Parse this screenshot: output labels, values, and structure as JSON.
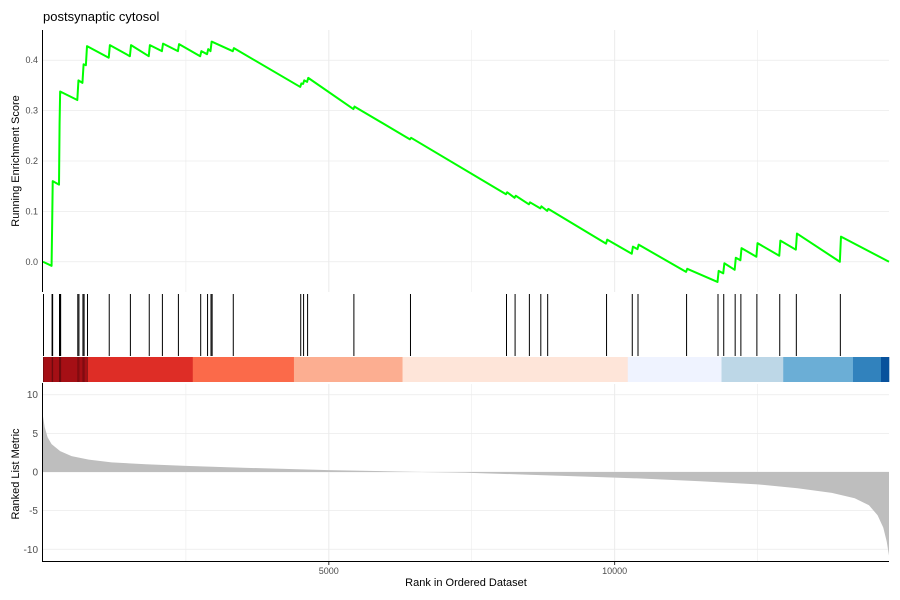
{
  "chart_data": {
    "type": "line",
    "title": "postsynaptic cytosol",
    "xlabel": "Rank in Ordered Dataset",
    "x_ticks": [
      "5000",
      "10000"
    ],
    "x_range": [
      0,
      14800
    ],
    "grid": true,
    "panels": {
      "enrichment": {
        "ylabel": "Running Enrichment Score",
        "ylim": [
          -0.06,
          0.46
        ],
        "y_ticks": [
          "0.0",
          "0.1",
          "0.2",
          "0.3",
          "0.4"
        ],
        "line_color": "#00FF00",
        "series": [
          {
            "points": [
              [
                0,
                0.0
              ],
              [
                150,
                -0.008
              ],
              [
                160,
                0.073
              ],
              [
                170,
                0.16
              ],
              [
                280,
                0.153
              ],
              [
                290,
                0.275
              ],
              [
                300,
                0.338
              ],
              [
                600,
                0.321
              ],
              [
                620,
                0.36
              ],
              [
                690,
                0.355
              ],
              [
                710,
                0.392
              ],
              [
                750,
                0.39
              ],
              [
                770,
                0.428
              ],
              [
                1150,
                0.405
              ],
              [
                1170,
                0.43
              ],
              [
                1520,
                0.408
              ],
              [
                1540,
                0.43
              ],
              [
                1850,
                0.408
              ],
              [
                1870,
                0.43
              ],
              [
                2080,
                0.418
              ],
              [
                2100,
                0.433
              ],
              [
                2360,
                0.418
              ],
              [
                2380,
                0.432
              ],
              [
                2750,
                0.408
              ],
              [
                2770,
                0.418
              ],
              [
                2870,
                0.412
              ],
              [
                2890,
                0.422
              ],
              [
                2930,
                0.418
              ],
              [
                2950,
                0.437
              ],
              [
                3320,
                0.418
              ],
              [
                3340,
                0.424
              ],
              [
                4500,
                0.347
              ],
              [
                4520,
                0.354
              ],
              [
                4550,
                0.353
              ],
              [
                4570,
                0.36
              ],
              [
                4620,
                0.357
              ],
              [
                4640,
                0.365
              ],
              [
                5430,
                0.303
              ],
              [
                5450,
                0.308
              ],
              [
                6420,
                0.243
              ],
              [
                6440,
                0.246
              ],
              [
                8100,
                0.134
              ],
              [
                8120,
                0.138
              ],
              [
                8250,
                0.127
              ],
              [
                8270,
                0.131
              ],
              [
                8500,
                0.114
              ],
              [
                8520,
                0.118
              ],
              [
                8700,
                0.106
              ],
              [
                8720,
                0.11
              ],
              [
                8820,
                0.101
              ],
              [
                8840,
                0.105
              ],
              [
                9850,
                0.036
              ],
              [
                9870,
                0.044
              ],
              [
                10300,
                0.016
              ],
              [
                10320,
                0.03
              ],
              [
                10400,
                0.025
              ],
              [
                10420,
                0.034
              ],
              [
                11250,
                -0.02
              ],
              [
                11270,
                -0.014
              ],
              [
                11800,
                -0.04
              ],
              [
                11820,
                -0.018
              ],
              [
                11900,
                -0.023
              ],
              [
                11920,
                -0.003
              ],
              [
                12100,
                -0.016
              ],
              [
                12120,
                0.008
              ],
              [
                12200,
                0.003
              ],
              [
                12220,
                0.027
              ],
              [
                12480,
                0.01
              ],
              [
                12500,
                0.037
              ],
              [
                12880,
                0.012
              ],
              [
                12900,
                0.042
              ],
              [
                13170,
                0.024
              ],
              [
                13190,
                0.056
              ],
              [
                13940,
                0.0
              ],
              [
                13960,
                0.05
              ],
              [
                14800,
                0.0
              ]
            ]
          }
        ]
      },
      "hits": [
        0,
        150,
        160,
        280,
        290,
        300,
        600,
        620,
        690,
        710,
        770,
        1150,
        1520,
        1850,
        2080,
        2360,
        2750,
        2870,
        2930,
        2950,
        3320,
        4500,
        4550,
        4620,
        5430,
        6420,
        8100,
        8250,
        8500,
        8700,
        8820,
        9850,
        10300,
        10400,
        11250,
        11800,
        11900,
        12100,
        12200,
        12480,
        12880,
        13170,
        13940
      ],
      "rank_bands": [
        {
          "from": 0,
          "to": 780,
          "color": "#A50F15"
        },
        {
          "from": 780,
          "to": 2620,
          "color": "#DE2D26"
        },
        {
          "from": 2620,
          "to": 4390,
          "color": "#FB6A4A"
        },
        {
          "from": 4390,
          "to": 6290,
          "color": "#FCAE91"
        },
        {
          "from": 6290,
          "to": 10230,
          "color": "#FEE5D9"
        },
        {
          "from": 10230,
          "to": 11870,
          "color": "#EFF3FF"
        },
        {
          "from": 11870,
          "to": 12950,
          "color": "#BDD7E7"
        },
        {
          "from": 12950,
          "to": 14170,
          "color": "#6BAED6"
        },
        {
          "from": 14170,
          "to": 14660,
          "color": "#3182BD"
        },
        {
          "from": 14660,
          "to": 14800,
          "color": "#08519C"
        }
      ],
      "ranked_metric": {
        "ylabel": "Ranked List Metric",
        "ylim": [
          -11,
          11
        ],
        "y_ticks": [
          "10",
          "5",
          "0",
          "-5",
          "-10"
        ],
        "fill_color": "#BEBEBE",
        "curve": [
          [
            0,
            7.2
          ],
          [
            30,
            5.8
          ],
          [
            80,
            4.5
          ],
          [
            150,
            3.6
          ],
          [
            300,
            2.7
          ],
          [
            500,
            2.05
          ],
          [
            800,
            1.6
          ],
          [
            1200,
            1.25
          ],
          [
            1800,
            1.0
          ],
          [
            2500,
            0.8
          ],
          [
            3500,
            0.55
          ],
          [
            5000,
            0.25
          ],
          [
            6500,
            0.02
          ],
          [
            7400,
            -0.1
          ],
          [
            8500,
            -0.35
          ],
          [
            9500,
            -0.6
          ],
          [
            10500,
            -0.85
          ],
          [
            11500,
            -1.2
          ],
          [
            12500,
            -1.6
          ],
          [
            13200,
            -2.1
          ],
          [
            13800,
            -2.7
          ],
          [
            14200,
            -3.4
          ],
          [
            14450,
            -4.3
          ],
          [
            14600,
            -5.6
          ],
          [
            14700,
            -7.2
          ],
          [
            14760,
            -9.0
          ],
          [
            14800,
            -10.8
          ]
        ]
      }
    }
  }
}
